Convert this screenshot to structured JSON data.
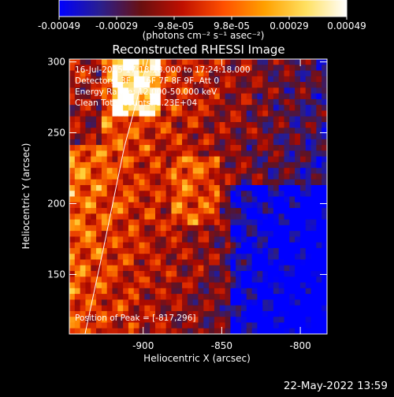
{
  "colorbar": {
    "ticks": [
      "-0.00049",
      "-0.00029",
      "-9.8e-05",
      "9.8e-05",
      "0.00029",
      "0.00049"
    ],
    "units_text": "(photons cm⁻² s⁻¹ asec⁻²)",
    "range": [
      -0.00049,
      0.00049
    ],
    "colors": [
      "#0000ff",
      "#2a1f8f",
      "#6a1010",
      "#c01000",
      "#ff5000",
      "#ffa000",
      "#ffe060",
      "#ffffff"
    ]
  },
  "chart_data": {
    "type": "heatmap",
    "title": "Reconstructed RHESSI Image",
    "xlabel": "Heliocentric X (arcsec)",
    "ylabel": "Heliocentric Y (arcsec)",
    "xlim": [
      -947,
      -783
    ],
    "ylim": [
      108,
      302
    ],
    "xticks": [
      -900,
      -850,
      -800
    ],
    "yticks": [
      150,
      200,
      250,
      300
    ],
    "x_tick_labels": [
      "-900",
      "-850",
      "-800"
    ],
    "y_tick_labels": [
      "150",
      "200",
      "250",
      "300"
    ],
    "annotations": [
      "16-Jul-2015 17:18:18.000 to 17:24:18.000",
      "Detectors: 3F 5F 6F 7F 8F 9F, Att 0",
      "Energy Range: 12.000-50.000 keV",
      "Clean    Total counts: 1.23E+04"
    ],
    "peak_text": "Position of Peak = [-817,296]",
    "limb_curve": {
      "x": [
        -937,
        -925,
        -912,
        -897
      ],
      "y": [
        108,
        170,
        240,
        302
      ]
    }
  },
  "footer": {
    "timestamp": "22-May-2022 13:59"
  }
}
